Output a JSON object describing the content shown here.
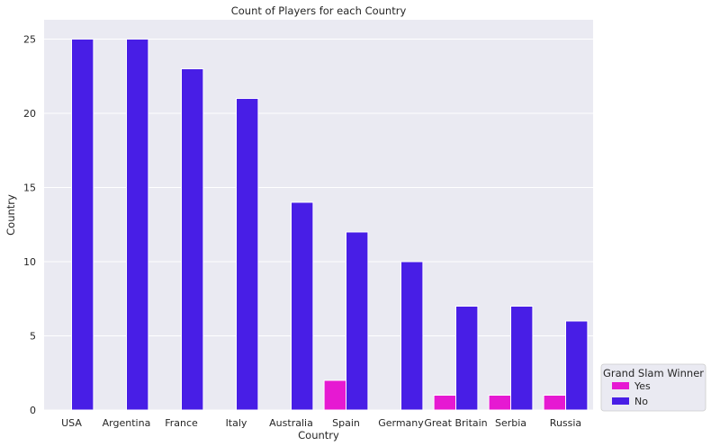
{
  "chart_data": {
    "type": "bar",
    "title": "Count of Players for each Country",
    "xlabel": "Country",
    "ylabel": "Country",
    "ylim": [
      0,
      26.3
    ],
    "yticks": [
      0,
      5,
      10,
      15,
      20,
      25
    ],
    "grid": true,
    "categories": [
      "USA",
      "Argentina",
      "France",
      "Italy",
      "Australia",
      "Spain",
      "Germany",
      "Great Britain",
      "Serbia",
      "Russia"
    ],
    "series": [
      {
        "name": "Yes",
        "color": "#e619d2",
        "values": [
          0,
          0,
          0,
          0,
          0,
          2,
          0,
          1,
          1,
          1
        ]
      },
      {
        "name": "No",
        "color": "#481ee6",
        "values": [
          25,
          25,
          23,
          21,
          14,
          12,
          10,
          7,
          7,
          6
        ]
      }
    ],
    "legend": {
      "title": "Grand Slam Winner",
      "placement": "lower-right outside"
    }
  }
}
